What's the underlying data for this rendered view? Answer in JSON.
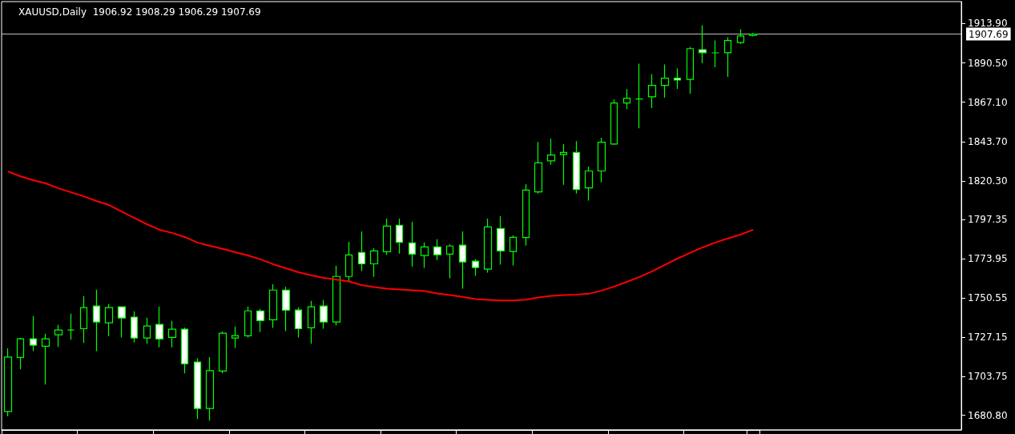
{
  "chart_data": {
    "type": "candlestick",
    "title": "XAUUSD,Daily  1906.92 1908.29 1906.29 1907.69",
    "categories": [
      null,
      null,
      null,
      null,
      null,
      null,
      null,
      null,
      null,
      null,
      null,
      null,
      null,
      null,
      null,
      null,
      null,
      null,
      null,
      null,
      null,
      null,
      null,
      null,
      null,
      null,
      null,
      null,
      null,
      null,
      null,
      null,
      null,
      null,
      null,
      null,
      null,
      null,
      null,
      null,
      null,
      null,
      null,
      null,
      null,
      null,
      null,
      null,
      null,
      null,
      null,
      null,
      null,
      null,
      null,
      null,
      null,
      null,
      null,
      null
    ],
    "ohlc": [
      [
        1683.0,
        1720.6,
        1680.2,
        1715.4
      ],
      [
        1715.2,
        1726.9,
        1708.1,
        1726.3
      ],
      [
        1726.3,
        1739.8,
        1719.0,
        1722.5
      ],
      [
        1721.9,
        1729.3,
        1699.0,
        1726.3
      ],
      [
        1728.7,
        1734.6,
        1721.4,
        1731.5
      ],
      [
        1731.5,
        1741.2,
        1725.7,
        1731.5
      ],
      [
        1732.3,
        1751.7,
        1723.8,
        1744.9
      ],
      [
        1745.8,
        1755.5,
        1719.0,
        1736.3
      ],
      [
        1735.8,
        1746.9,
        1727.9,
        1744.9
      ],
      [
        1745.3,
        1745.3,
        1727.1,
        1738.7
      ],
      [
        1739.2,
        1742.7,
        1724.1,
        1726.8
      ],
      [
        1726.8,
        1738.8,
        1723.3,
        1733.9
      ],
      [
        1734.9,
        1745.5,
        1721.2,
        1726.2
      ],
      [
        1727.1,
        1736.9,
        1721.2,
        1732.0
      ],
      [
        1732.0,
        1733.0,
        1705.7,
        1711.4
      ],
      [
        1712.5,
        1714.6,
        1678.6,
        1684.8
      ],
      [
        1684.8,
        1715.4,
        1677.6,
        1707.3
      ],
      [
        1707.1,
        1730.7,
        1705.7,
        1729.6
      ],
      [
        1726.8,
        1733.6,
        1720.9,
        1728.2
      ],
      [
        1728.1,
        1745.5,
        1727.1,
        1742.9
      ],
      [
        1742.9,
        1744.1,
        1730.4,
        1737.1
      ],
      [
        1737.6,
        1758.8,
        1732.8,
        1755.3
      ],
      [
        1755.3,
        1757.2,
        1730.9,
        1743.3
      ],
      [
        1743.4,
        1744.9,
        1727.1,
        1732.3
      ],
      [
        1732.8,
        1748.8,
        1723.3,
        1745.3
      ],
      [
        1745.8,
        1749.3,
        1732.3,
        1736.3
      ],
      [
        1736.3,
        1769.8,
        1734.3,
        1763.4
      ],
      [
        1763.4,
        1784.0,
        1760.7,
        1776.2
      ],
      [
        1777.7,
        1790.2,
        1766.6,
        1770.9
      ],
      [
        1770.9,
        1780.2,
        1763.2,
        1778.6
      ],
      [
        1778.1,
        1797.8,
        1776.1,
        1793.4
      ],
      [
        1793.9,
        1797.8,
        1777.0,
        1783.7
      ],
      [
        1783.4,
        1795.9,
        1769.4,
        1776.7
      ],
      [
        1775.8,
        1783.6,
        1768.5,
        1781.0
      ],
      [
        1781.0,
        1785.5,
        1773.2,
        1776.3
      ],
      [
        1776.7,
        1782.6,
        1762.3,
        1781.5
      ],
      [
        1782.0,
        1790.2,
        1756.1,
        1772.0
      ],
      [
        1772.5,
        1773.6,
        1763.7,
        1768.7
      ],
      [
        1767.7,
        1797.8,
        1765.6,
        1792.9
      ],
      [
        1791.9,
        1799.3,
        1770.4,
        1778.6
      ],
      [
        1778.2,
        1787.8,
        1769.9,
        1786.7
      ],
      [
        1786.6,
        1818.3,
        1781.8,
        1814.8
      ],
      [
        1813.7,
        1843.5,
        1812.7,
        1831.0
      ],
      [
        1832.2,
        1845.4,
        1829.9,
        1835.7
      ],
      [
        1836.0,
        1842.1,
        1818.0,
        1837.2
      ],
      [
        1837.2,
        1844.0,
        1812.7,
        1815.1
      ],
      [
        1816.1,
        1828.8,
        1808.5,
        1826.2
      ],
      [
        1826.2,
        1845.9,
        1819.4,
        1843.3
      ],
      [
        1842.2,
        1868.7,
        1841.7,
        1866.6
      ],
      [
        1866.6,
        1874.9,
        1863.0,
        1869.5
      ],
      [
        1869.0,
        1890.1,
        1851.6,
        1869.0
      ],
      [
        1870.3,
        1883.9,
        1863.6,
        1877.1
      ],
      [
        1877.1,
        1889.6,
        1869.8,
        1881.4
      ],
      [
        1881.4,
        1887.3,
        1875.1,
        1880.3
      ],
      [
        1880.7,
        1900.1,
        1872.2,
        1899.0
      ],
      [
        1898.4,
        1912.9,
        1890.3,
        1896.6
      ],
      [
        1896.5,
        1903.9,
        1887.9,
        1896.5
      ],
      [
        1896.6,
        1905.8,
        1882.2,
        1903.8
      ],
      [
        1902.6,
        1910.6,
        1901.7,
        1906.6
      ],
      [
        1906.92,
        1908.29,
        1906.29,
        1907.69
      ]
    ],
    "color": "#00ff00",
    "series": [
      {
        "type": "line",
        "color": "#ff0000",
        "values": [
          1825.9,
          1823.0,
          1820.7,
          1818.8,
          1815.9,
          1813.5,
          1811.1,
          1808.3,
          1805.9,
          1802.1,
          1798.3,
          1794.5,
          1791.2,
          1789.3,
          1786.9,
          1783.6,
          1781.6,
          1779.8,
          1777.8,
          1775.9,
          1773.6,
          1770.7,
          1768.3,
          1765.9,
          1764.1,
          1762.6,
          1761.5,
          1760.4,
          1758.3,
          1757.1,
          1756.1,
          1755.6,
          1755.2,
          1754.7,
          1753.3,
          1752.3,
          1751.2,
          1749.9,
          1749.5,
          1749.1,
          1749.1,
          1749.6,
          1750.9,
          1751.8,
          1752.3,
          1752.5,
          1753.1,
          1755.0,
          1757.4,
          1760.2,
          1763.1,
          1766.4,
          1770.2,
          1774.0,
          1777.4,
          1780.7,
          1783.6,
          1786.0,
          1788.3,
          1791.2
        ]
      }
    ],
    "ylim": [
      1672,
      1927
    ],
    "yticks": [
      {
        "value": 1913.9,
        "label": "1913.90"
      },
      {
        "value": 1890.5,
        "label": "1890.50"
      },
      {
        "value": 1867.1,
        "label": "1867.10"
      },
      {
        "value": 1843.7,
        "label": "1843.70"
      },
      {
        "value": 1820.3,
        "label": "1820.30"
      },
      {
        "value": 1797.35,
        "label": "1797.35"
      },
      {
        "value": 1773.95,
        "label": "1773.95"
      },
      {
        "value": 1750.55,
        "label": "1750.55"
      },
      {
        "value": 1727.15,
        "label": "1727.15"
      },
      {
        "value": 1703.75,
        "label": "1703.75"
      },
      {
        "value": 1680.8,
        "label": "1680.80"
      }
    ],
    "ref_lines": [
      {
        "axis": "y",
        "value": 1907.69,
        "label": "1907.69",
        "color": "#c0c0c0"
      }
    ],
    "tick_labels": "y",
    "grid": false,
    "marker": "none"
  }
}
